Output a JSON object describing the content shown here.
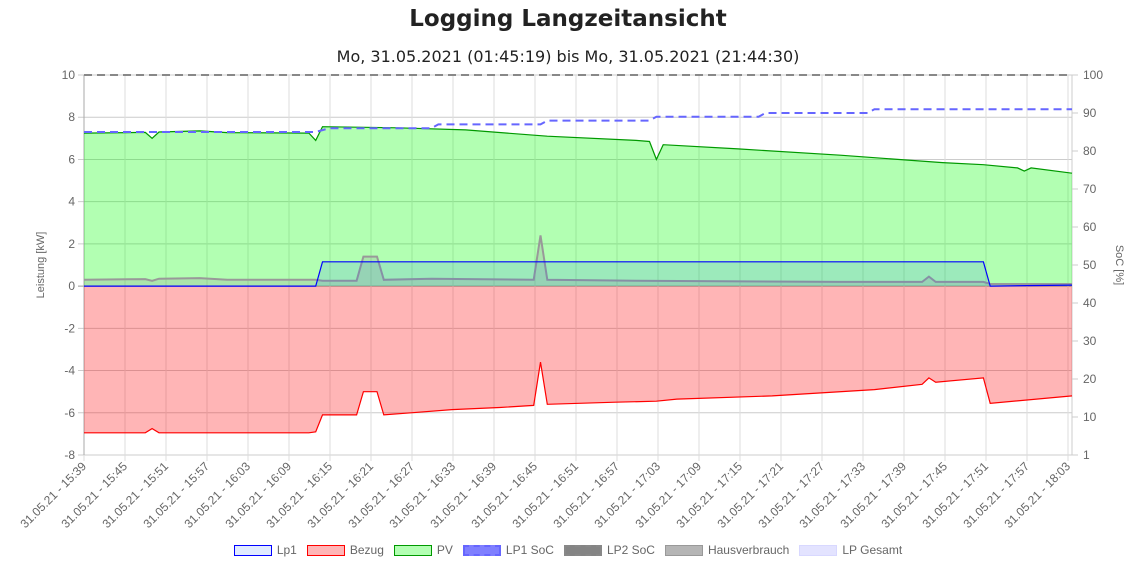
{
  "chart_data": {
    "type": "line",
    "title": "Logging Langzeitansicht",
    "subtitle": "Mo, 31.05.2021 (01:45:19) bis Mo, 31.05.2021 (21:44:30)",
    "ylabel": "Leistung [kW]",
    "y2label": "SoC [%]",
    "ylim": [
      -8,
      10
    ],
    "yticks": [
      10,
      8,
      6,
      4,
      2,
      0,
      -2,
      -4,
      -6,
      -8
    ],
    "y2ticks": [
      "100",
      "90",
      "80",
      "70",
      "60",
      "50",
      "40",
      "30",
      "20",
      "10",
      "1"
    ],
    "grid": true,
    "legend_position": "bottom",
    "xtick_labels": [
      "31.05.21 - 15:39",
      "31.05.21 - 15:45",
      "31.05.21 - 15:51",
      "31.05.21 - 15:57",
      "31.05.21 - 16:03",
      "31.05.21 - 16:09",
      "31.05.21 - 16:15",
      "31.05.21 - 16:21",
      "31.05.21 - 16:27",
      "31.05.21 - 16:33",
      "31.05.21 - 16:39",
      "31.05.21 - 16:45",
      "31.05.21 - 16:51",
      "31.05.21 - 16:57",
      "31.05.21 - 17:03",
      "31.05.21 - 17:09",
      "31.05.21 - 17:15",
      "31.05.21 - 17:21",
      "31.05.21 - 17:27",
      "31.05.21 - 17:33",
      "31.05.21 - 17:39",
      "31.05.21 - 17:45",
      "31.05.21 - 17:51",
      "31.05.21 - 17:57",
      "31.05.21 - 18:03"
    ],
    "xrange": [
      "15:39",
      "18:04"
    ],
    "series": [
      {
        "name": "Lp1",
        "axis": "left",
        "color": "#0000ff",
        "fill": "rgba(0,80,255,0.12)",
        "dash": false,
        "points": [
          [
            "15:39",
            0
          ],
          [
            "16:13",
            0
          ],
          [
            "16:14",
            1.15
          ],
          [
            "17:51",
            1.15
          ],
          [
            "17:52",
            0
          ],
          [
            "18:04",
            0.05
          ]
        ]
      },
      {
        "name": "Bezug",
        "axis": "left",
        "color": "#ff0000",
        "fill": "rgba(255,10,13,0.3)",
        "dash": false,
        "points": [
          [
            "15:39",
            -6.95
          ],
          [
            "15:48",
            -6.95
          ],
          [
            "15:49",
            -6.75
          ],
          [
            "15:50",
            -6.95
          ],
          [
            "16:12",
            -6.95
          ],
          [
            "16:13",
            -6.9
          ],
          [
            "16:14",
            -6.1
          ],
          [
            "16:19",
            -6.1
          ],
          [
            "16:20",
            -5.0
          ],
          [
            "16:22",
            -5.0
          ],
          [
            "16:23",
            -6.1
          ],
          [
            "16:27",
            -6.0
          ],
          [
            "16:33",
            -5.85
          ],
          [
            "16:40",
            -5.75
          ],
          [
            "16:45",
            -5.65
          ],
          [
            "16:46",
            -3.6
          ],
          [
            "16:47",
            -5.6
          ],
          [
            "16:57",
            -5.5
          ],
          [
            "17:03",
            -5.45
          ],
          [
            "17:06",
            -5.35
          ],
          [
            "17:20",
            -5.2
          ],
          [
            "17:35",
            -4.9
          ],
          [
            "17:42",
            -4.65
          ],
          [
            "17:43",
            -4.35
          ],
          [
            "17:44",
            -4.55
          ],
          [
            "17:51",
            -4.35
          ],
          [
            "17:52",
            -5.55
          ],
          [
            "18:04",
            -5.2
          ]
        ]
      },
      {
        "name": "PV",
        "axis": "left",
        "color": "#009900",
        "fill": "rgba(0,255,0,0.3)",
        "dash": false,
        "points": [
          [
            "15:39",
            7.25
          ],
          [
            "15:48",
            7.28
          ],
          [
            "15:49",
            7.0
          ],
          [
            "15:50",
            7.3
          ],
          [
            "15:56",
            7.35
          ],
          [
            "16:00",
            7.27
          ],
          [
            "16:12",
            7.25
          ],
          [
            "16:13",
            6.9
          ],
          [
            "16:14",
            7.55
          ],
          [
            "16:25",
            7.5
          ],
          [
            "16:35",
            7.4
          ],
          [
            "16:47",
            7.1
          ],
          [
            "17:00",
            6.9
          ],
          [
            "17:02",
            6.85
          ],
          [
            "17:03",
            6.0
          ],
          [
            "17:04",
            6.7
          ],
          [
            "17:15",
            6.5
          ],
          [
            "17:30",
            6.2
          ],
          [
            "17:45",
            5.85
          ],
          [
            "17:51",
            5.75
          ],
          [
            "17:56",
            5.6
          ],
          [
            "17:57",
            5.45
          ],
          [
            "17:58",
            5.6
          ],
          [
            "18:04",
            5.35
          ]
        ]
      },
      {
        "name": "LP1 SoC",
        "axis": "right",
        "color": "#6666ff",
        "fill": "rgba(0,0,255,0.5)",
        "dash": true,
        "points": [
          [
            "15:39",
            85
          ],
          [
            "16:13",
            85
          ],
          [
            "16:15",
            86
          ],
          [
            "16:30",
            86
          ],
          [
            "16:31",
            87
          ],
          [
            "16:46",
            87
          ],
          [
            "16:47",
            88
          ],
          [
            "17:02",
            88
          ],
          [
            "17:03",
            89
          ],
          [
            "17:18",
            89
          ],
          [
            "17:19",
            90
          ],
          [
            "17:34",
            90
          ],
          [
            "17:35",
            91
          ],
          [
            "18:04",
            91
          ]
        ]
      },
      {
        "name": "LP2 SoC",
        "axis": "right",
        "color": "#888888",
        "fill": "rgba(80,80,80,0.7)",
        "dash": true,
        "points": [
          [
            "15:39",
            100
          ],
          [
            "18:04",
            100
          ]
        ]
      },
      {
        "name": "Hausverbrauch",
        "axis": "left",
        "color": "#999999",
        "fill": "rgba(150,150,150,0.7)",
        "dash": false,
        "points": [
          [
            "15:39",
            0.3
          ],
          [
            "15:48",
            0.33
          ],
          [
            "15:49",
            0.25
          ],
          [
            "15:50",
            0.35
          ],
          [
            "15:56",
            0.38
          ],
          [
            "16:00",
            0.3
          ],
          [
            "16:13",
            0.3
          ],
          [
            "16:14",
            0.25
          ],
          [
            "16:19",
            0.25
          ],
          [
            "16:20",
            1.4
          ],
          [
            "16:22",
            1.4
          ],
          [
            "16:23",
            0.3
          ],
          [
            "16:30",
            0.35
          ],
          [
            "16:45",
            0.3
          ],
          [
            "16:46",
            2.4
          ],
          [
            "16:47",
            0.3
          ],
          [
            "17:00",
            0.25
          ],
          [
            "17:30",
            0.2
          ],
          [
            "17:42",
            0.2
          ],
          [
            "17:43",
            0.45
          ],
          [
            "17:44",
            0.2
          ],
          [
            "17:51",
            0.2
          ],
          [
            "17:52",
            0.1
          ],
          [
            "18:04",
            0.1
          ]
        ]
      },
      {
        "name": "LP Gesamt",
        "axis": "left",
        "color": "#d8d8ff",
        "fill": "rgba(200,200,255,0.5)",
        "dash": false,
        "points": []
      }
    ]
  }
}
